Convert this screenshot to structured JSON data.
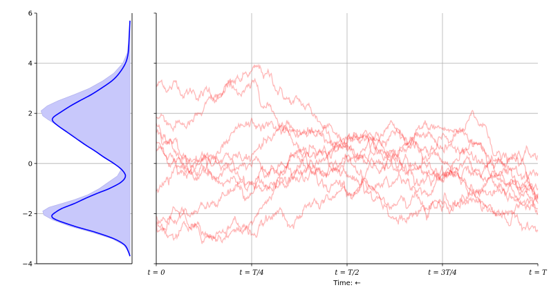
{
  "chart_data": [
    {
      "type": "area",
      "orientation": "horizontal",
      "ylim": [
        -4,
        6
      ],
      "yticks": [
        "−4",
        "−2",
        "0",
        "2",
        "4",
        "6"
      ],
      "grid": true,
      "colors": {
        "fill": "#c8c8fb",
        "fill_edge": "#b4b4ee",
        "curve": "#0000ff"
      },
      "series": [
        {
          "values_note": "density (filled) vs y",
          "y": [
            -3.7,
            -3.5,
            -3.25,
            -3.0,
            -2.75,
            -2.5,
            -2.25,
            -2.05,
            -1.9,
            -1.75,
            -1.6,
            -1.45,
            -1.25,
            -1.0,
            -0.75,
            -0.5,
            -0.25,
            0.0,
            0.25,
            0.5,
            0.75,
            1.0,
            1.25,
            1.5,
            1.75,
            1.9,
            2.1,
            2.3,
            2.5,
            2.75,
            3.0,
            3.3,
            3.6,
            4.0,
            4.4,
            5.0,
            5.7
          ],
          "density": [
            0.0,
            0.02,
            0.07,
            0.2,
            0.42,
            0.67,
            0.86,
            0.96,
            0.97,
            0.9,
            0.76,
            0.62,
            0.47,
            0.34,
            0.24,
            0.14,
            0.1,
            0.17,
            0.28,
            0.39,
            0.49,
            0.58,
            0.68,
            0.8,
            0.91,
            0.97,
            0.99,
            0.92,
            0.8,
            0.62,
            0.45,
            0.3,
            0.18,
            0.08,
            0.03,
            0.01,
            0.0
          ]
        },
        {
          "values_note": "density (curve) vs y",
          "y": [
            -3.7,
            -3.5,
            -3.25,
            -3.0,
            -2.75,
            -2.5,
            -2.25,
            -2.1,
            -1.95,
            -1.8,
            -1.6,
            -1.4,
            -1.2,
            -1.0,
            -0.75,
            -0.5,
            -0.25,
            0.0,
            0.25,
            0.5,
            0.75,
            1.0,
            1.25,
            1.5,
            1.7,
            1.85,
            2.05,
            2.3,
            2.5,
            2.75,
            3.0,
            3.3,
            3.6,
            4.0,
            4.4,
            5.0,
            5.7
          ],
          "density": [
            0.0,
            0.02,
            0.06,
            0.18,
            0.38,
            0.62,
            0.82,
            0.87,
            0.83,
            0.76,
            0.62,
            0.5,
            0.37,
            0.23,
            0.1,
            0.05,
            0.09,
            0.18,
            0.29,
            0.39,
            0.5,
            0.6,
            0.7,
            0.8,
            0.86,
            0.85,
            0.77,
            0.66,
            0.56,
            0.43,
            0.32,
            0.2,
            0.12,
            0.05,
            0.02,
            0.01,
            0.0
          ]
        }
      ]
    },
    {
      "type": "line",
      "xlim": [
        0,
        1
      ],
      "ylim": [
        -4,
        6
      ],
      "xticks": [
        "t = 0",
        "t = T/4",
        "t = T/2",
        "t = 3T/4",
        "t = T"
      ],
      "xlabel": "Time: ←",
      "grid": true,
      "colors": {
        "line": "#ff0000",
        "alpha": 0.28
      },
      "series": [
        {
          "start": 3.1,
          "end": -1.3,
          "anchors": [
            [
              0.25,
              3.5
            ],
            [
              0.45,
              0.6
            ],
            [
              0.7,
              0.1
            ],
            [
              0.85,
              -0.6
            ]
          ]
        },
        {
          "start": 1.85,
          "end": -1.0,
          "anchors": [
            [
              0.22,
              2.0
            ],
            [
              0.45,
              -0.3
            ],
            [
              0.7,
              1.0
            ],
            [
              0.85,
              0.3
            ]
          ]
        },
        {
          "start": 1.6,
          "end": -1.8,
          "anchors": [
            [
              0.2,
              1.4
            ],
            [
              0.45,
              0.5
            ],
            [
              0.7,
              -1.0
            ],
            [
              0.85,
              0.2
            ]
          ]
        },
        {
          "start": 1.3,
          "end": -0.4,
          "anchors": [
            [
              0.2,
              1.0
            ],
            [
              0.45,
              1.2
            ],
            [
              0.68,
              1.5
            ],
            [
              0.83,
              2.2
            ]
          ]
        },
        {
          "start": 0.8,
          "end": -2.0,
          "anchors": [
            [
              0.2,
              0.9
            ],
            [
              0.45,
              -0.8
            ],
            [
              0.7,
              -1.8
            ],
            [
              0.85,
              -0.8
            ]
          ]
        },
        {
          "start": 0.5,
          "end": 0.3,
          "anchors": [
            [
              0.22,
              0.8
            ],
            [
              0.45,
              1.6
            ],
            [
              0.7,
              1.9
            ],
            [
              0.85,
              0.9
            ]
          ]
        },
        {
          "start": -1.1,
          "end": -1.6,
          "anchors": [
            [
              0.22,
              -0.2
            ],
            [
              0.45,
              0.3
            ],
            [
              0.7,
              -1.2
            ],
            [
              0.85,
              -2.4
            ]
          ]
        },
        {
          "start": -2.1,
          "end": -1.2,
          "anchors": [
            [
              0.25,
              -1.9
            ],
            [
              0.45,
              -1.6
            ],
            [
              0.7,
              -0.8
            ],
            [
              0.85,
              -1.4
            ]
          ]
        },
        {
          "start": -2.3,
          "end": -2.7,
          "anchors": [
            [
              0.25,
              -2.6
            ],
            [
              0.45,
              -1.2
            ],
            [
              0.68,
              -2.2
            ],
            [
              0.85,
              -1.9
            ]
          ]
        },
        {
          "start": -2.4,
          "end": -1.4,
          "anchors": [
            [
              0.25,
              -1.3
            ],
            [
              0.45,
              0.3
            ],
            [
              0.68,
              -0.6
            ],
            [
              0.85,
              -0.3
            ]
          ]
        }
      ]
    }
  ]
}
